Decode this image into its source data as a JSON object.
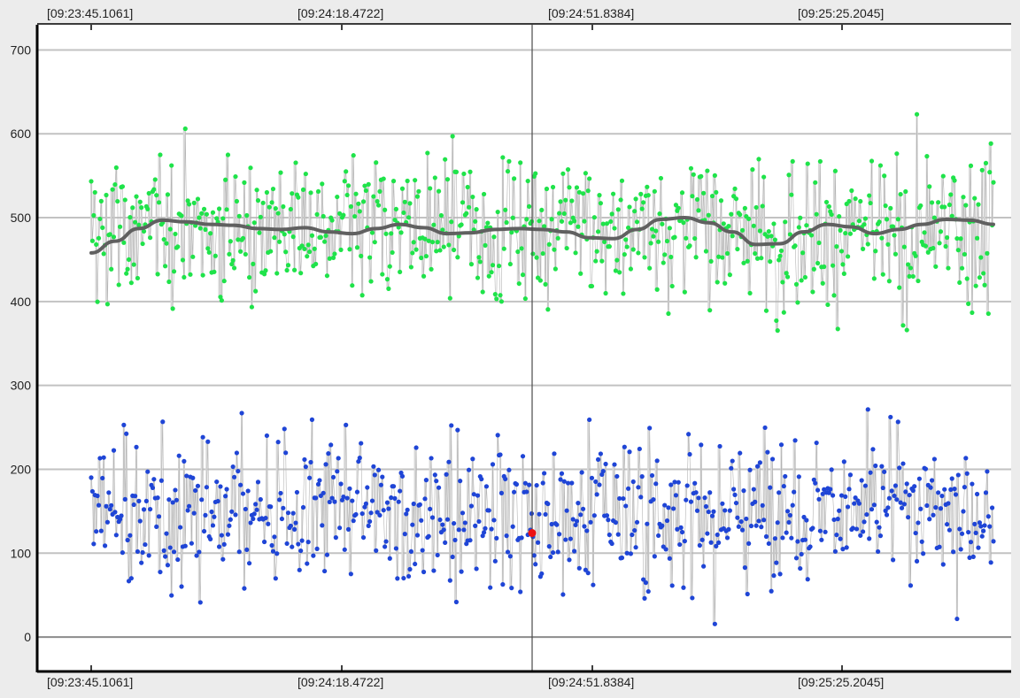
{
  "chart_data": {
    "type": "scatter",
    "title": "",
    "xlabel": "",
    "ylabel": "",
    "x_tick_labels": [
      "[09:23:45.1061]",
      "[09:24:18.4722]",
      "[09:24:51.8384]",
      "[09:25:25.2045]"
    ],
    "y_tick_labels": [
      "0",
      "100",
      "200",
      "300",
      "400",
      "500",
      "600",
      "700"
    ],
    "ylim": [
      -40,
      730
    ],
    "grid": "horizontal",
    "legend": "none",
    "cursor_marker": {
      "x_label": "[09:24:51.8384]",
      "value": 124
    },
    "series": [
      {
        "color": "#1fe34a",
        "value_range": [
          332,
          705
        ],
        "mean": 485
      },
      {
        "color": "#1f45d6",
        "value_range": [
          -12,
          345
        ],
        "mean": 150
      },
      {
        "color": "#606060",
        "style": "smoothed-trend",
        "values": [
          458,
          472,
          487,
          497,
          495,
          492,
          491,
          487,
          486,
          488,
          483,
          481,
          487,
          492,
          488,
          481,
          482,
          486,
          487,
          486,
          483,
          476,
          475,
          486,
          498,
          500,
          494,
          483,
          468,
          469,
          483,
          492,
          489,
          481,
          486,
          492,
          498,
          497,
          492
        ]
      }
    ]
  }
}
